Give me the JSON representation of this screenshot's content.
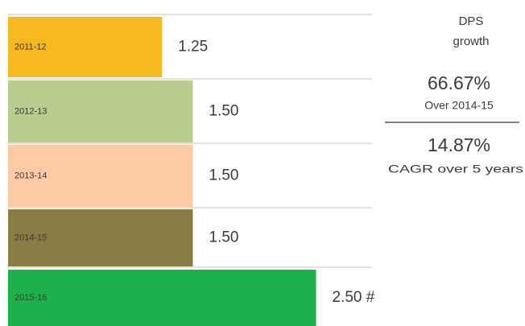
{
  "chart_data": {
    "type": "bar",
    "orientation": "horizontal",
    "categories": [
      "2011-12",
      "2012-13",
      "2013-14",
      "2014-15",
      "2015-16"
    ],
    "values": [
      1.25,
      1.5,
      1.5,
      1.5,
      2.5
    ],
    "value_labels": [
      "1.25",
      "1.50",
      "1.50",
      "1.50",
      "2.50 #"
    ],
    "colors": [
      "#f6b81f",
      "#b7cd8f",
      "#fccba6",
      "#8a7c45",
      "#1db14b"
    ],
    "annotations": [
      "DPS",
      "growth",
      "66.67%",
      "Over 2014-15",
      "14.87%",
      "CAGR over 5 years"
    ]
  }
}
